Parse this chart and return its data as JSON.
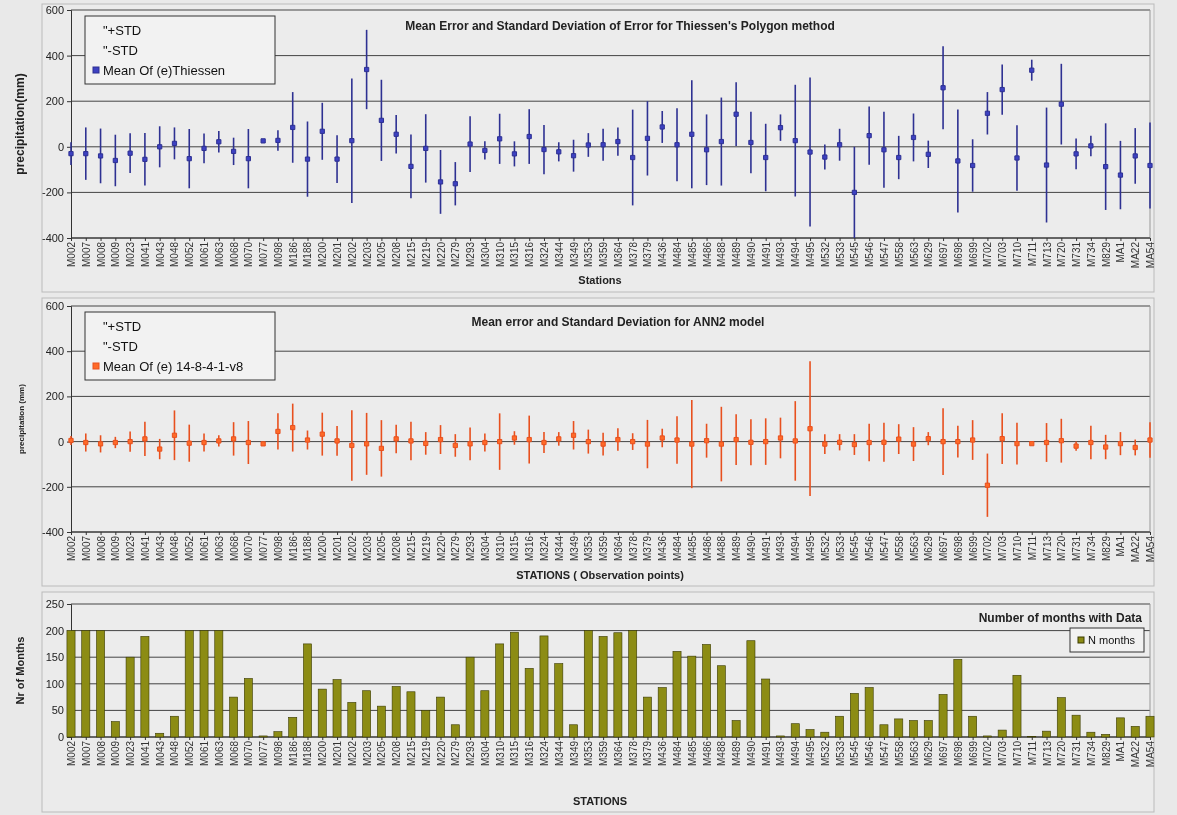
{
  "chart_data": [
    {
      "type": "scatter",
      "title": "Mean Error and Standard Deviation of Error for Thiessen's Polygon method",
      "xlabel": "Stations",
      "ylabel": "precipitation(mm)",
      "annotations": [
        "\"+STD",
        "\"-STD"
      ],
      "legend": "top left",
      "grid": "y",
      "marker": "square",
      "ylim": [
        -400,
        600
      ],
      "yticks": [
        -400,
        -200,
        0,
        200,
        400,
        600
      ],
      "categories": [
        "M002",
        "M007",
        "M008",
        "M009",
        "M023",
        "M041",
        "M043",
        "M048",
        "M052",
        "M061",
        "M063",
        "M068",
        "M070",
        "M077",
        "M098",
        "M186",
        "M188",
        "M200",
        "M201",
        "M202",
        "M203",
        "M205",
        "M208",
        "M215",
        "M219",
        "M220",
        "M279",
        "M293",
        "M304",
        "M310",
        "M315",
        "M316",
        "M324",
        "M344",
        "M349",
        "M353",
        "M359",
        "M364",
        "M378",
        "M379",
        "M436",
        "M484",
        "M485",
        "M486",
        "M488",
        "M489",
        "M490",
        "M491",
        "M493",
        "M494",
        "M495",
        "M532",
        "M533",
        "M545",
        "M546",
        "M547",
        "M558",
        "M563",
        "M629",
        "M697",
        "M698",
        "M699",
        "M702",
        "M703",
        "M710",
        "M711",
        "M713",
        "M720",
        "M731",
        "M734",
        "M829",
        "MA1",
        "MA22",
        "MA54"
      ],
      "series": [
        {
          "name": "Mean Of (e)Thiessen",
          "color": "#2e3192",
          "values": [
            -30,
            -30,
            -40,
            -60,
            -28,
            -55,
            0,
            15,
            -52,
            -7,
            22,
            -20,
            -52,
            26,
            28,
            85,
            -54,
            68,
            -54,
            27,
            339,
            116,
            55,
            -86,
            -7,
            -154,
            -162,
            12,
            -16,
            35,
            -31,
            45,
            -12,
            -22,
            -39,
            8,
            9,
            23,
            -47,
            37,
            87,
            9,
            55,
            -13,
            23,
            143,
            19,
            -47,
            84,
            27,
            -23,
            -45,
            9,
            -200,
            49,
            -13,
            -47,
            41,
            -33,
            259,
            -62,
            -82,
            147,
            251,
            -49,
            336,
            -80,
            187,
            -31,
            4,
            -87,
            -124,
            -40,
            -82
          ],
          "errors": [
            50,
            115,
            120,
            113,
            87,
            115,
            90,
            70,
            130,
            65,
            47,
            60,
            130,
            null,
            45,
            155,
            165,
            125,
            105,
            273,
            174,
            178,
            84,
            140,
            150,
            140,
            95,
            122,
            40,
            110,
            55,
            120,
            108,
            42,
            70,
            52,
            70,
            62,
            210,
            163,
            70,
            160,
            237,
            155,
            193,
            140,
            135,
            148,
            58,
            245,
            327,
            55,
            70,
            200,
            128,
            167,
            95,
            105,
            60,
            182,
            226,
            115,
            93,
            110,
            144,
            46,
            252,
            177,
            67,
            45,
            190,
            150,
            122,
            189
          ]
        }
      ]
    },
    {
      "type": "scatter",
      "title": "Mean error and Standard Deviation for ANN2 model",
      "xlabel": "STATIONS ( Observation points)",
      "ylabel": "precipitation (mm)",
      "annotations": [
        "\"+STD",
        "\"-STD"
      ],
      "legend": "top left",
      "grid": "y",
      "marker": "square",
      "ylim": [
        -400,
        600
      ],
      "yticks": [
        -400,
        -200,
        0,
        200,
        400,
        600
      ],
      "categories": [
        "M002",
        "M007",
        "M008",
        "M009",
        "M023",
        "M041",
        "M043",
        "M048",
        "M052",
        "M061",
        "M063",
        "M068",
        "M070",
        "M077",
        "M098",
        "M186",
        "M188",
        "M200",
        "M201",
        "M202",
        "M203",
        "M205",
        "M208",
        "M215",
        "M219",
        "M220",
        "M279",
        "M293",
        "M304",
        "M310",
        "M315",
        "M316",
        "M324",
        "M344",
        "M349",
        "M353",
        "M359",
        "M364",
        "M378",
        "M379",
        "M436",
        "M484",
        "M485",
        "M486",
        "M488",
        "M489",
        "M490",
        "M491",
        "M493",
        "M494",
        "M495",
        "M532",
        "M533",
        "M545",
        "M546",
        "M547",
        "M558",
        "M563",
        "M629",
        "M697",
        "M698",
        "M699",
        "M702",
        "M703",
        "M710",
        "M711",
        "M713",
        "M720",
        "M731",
        "M734",
        "M829",
        "MA1",
        "MA22",
        "MA54"
      ],
      "series": [
        {
          "name": "Mean Of (e) 14-8-4-1-v8",
          "color": "#e8501e",
          "values": [
            5,
            -4,
            -10,
            -4,
            0,
            12,
            -33,
            28,
            -7,
            -4,
            3,
            12,
            -4,
            -10,
            45,
            62,
            7,
            33,
            3,
            -17,
            -10,
            -30,
            12,
            3,
            -8,
            9,
            -17,
            -10,
            -4,
            0,
            16,
            9,
            -4,
            12,
            28,
            0,
            -11,
            9,
            0,
            -11,
            16,
            7,
            -11,
            4,
            -11,
            9,
            -3,
            0,
            16,
            3,
            57,
            -11,
            -3,
            -13,
            -4,
            -3,
            11,
            -11,
            13,
            0,
            0,
            7,
            -193,
            13,
            -9,
            -9,
            -4,
            4,
            -20,
            -4,
            -24,
            -9,
            -26,
            7
          ],
          "errors": [
            20,
            40,
            38,
            25,
            45,
            76,
            45,
            110,
            82,
            40,
            25,
            74,
            95,
            null,
            80,
            106,
            42,
            95,
            66,
            156,
            137,
            125,
            63,
            85,
            50,
            64,
            50,
            72,
            40,
            125,
            30,
            106,
            46,
            30,
            63,
            53,
            50,
            50,
            37,
            107,
            41,
            105,
            195,
            75,
            165,
            112,
            102,
            103,
            90,
            176,
            298,
            44,
            36,
            46,
            83,
            86,
            66,
            75,
            29,
            148,
            70,
            88,
            140,
            112,
            92,
            null,
            86,
            97,
            20,
            74,
            54,
            51,
            35,
            79
          ]
        }
      ]
    },
    {
      "type": "bar",
      "title": "Number of months with Data",
      "xlabel": "STATIONS",
      "ylabel": "Nr of Months",
      "legend": "top right",
      "grid": "y",
      "ylim": [
        0,
        250
      ],
      "yticks": [
        0,
        50,
        100,
        150,
        200,
        250
      ],
      "categories": [
        "M002",
        "M007",
        "M008",
        "M009",
        "M023",
        "M041",
        "M043",
        "M048",
        "M052",
        "M061",
        "M063",
        "M068",
        "M070",
        "M077",
        "M098",
        "M186",
        "M188",
        "M200",
        "M201",
        "M202",
        "M203",
        "M205",
        "M208",
        "M215",
        "M219",
        "M220",
        "M279",
        "M293",
        "M304",
        "M310",
        "M315",
        "M316",
        "M324",
        "M344",
        "M349",
        "M353",
        "M359",
        "M364",
        "M378",
        "M379",
        "M436",
        "M484",
        "M485",
        "M486",
        "M488",
        "M489",
        "M490",
        "M491",
        "M493",
        "M494",
        "M495",
        "M532",
        "M533",
        "M545",
        "M546",
        "M547",
        "M558",
        "M563",
        "M629",
        "M697",
        "M698",
        "M699",
        "M702",
        "M703",
        "M710",
        "M711",
        "M713",
        "M720",
        "M731",
        "M734",
        "M829",
        "MA1",
        "MA22",
        "MA54"
      ],
      "series": [
        {
          "name": "N months",
          "color": "#8c8c14",
          "values": [
            200,
            200,
            200,
            29,
            150,
            189,
            7,
            39,
            200,
            200,
            200,
            75,
            110,
            2,
            10,
            37,
            175,
            90,
            108,
            65,
            87,
            58,
            95,
            85,
            50,
            75,
            23,
            150,
            87,
            175,
            197,
            129,
            190,
            138,
            23,
            200,
            189,
            196,
            200,
            75,
            93,
            161,
            152,
            174,
            134,
            31,
            181,
            109,
            2,
            25,
            14,
            9,
            39,
            82,
            93,
            23,
            34,
            31,
            31,
            80,
            146,
            39,
            2,
            13,
            116,
            1,
            11,
            74,
            41,
            9,
            5,
            36,
            20,
            39
          ]
        }
      ]
    }
  ]
}
